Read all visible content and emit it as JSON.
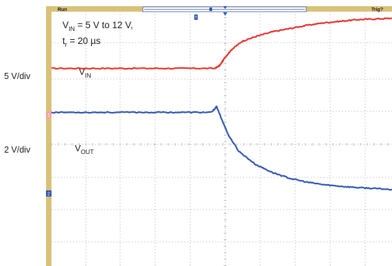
{
  "header": {
    "status": "Run",
    "trigger": "Trig?"
  },
  "annotation": {
    "line1": {
      "main": "V",
      "sub": "IN",
      "rest": " = 5 V to 12 V,"
    },
    "line2": {
      "main": "t",
      "sub": "r",
      "rest": " = 20 µs"
    }
  },
  "channels": [
    {
      "scale": "5 V/div",
      "color": "#e8312a"
    },
    {
      "scale": "2 V/div",
      "color": "#2f55b0"
    }
  ],
  "markers": {
    "trigger_position": "T",
    "ch1": "1",
    "ch2": "2"
  },
  "colors": {
    "frame": "#d8c27a",
    "grid": "#b0b0b0",
    "red": "#e8312a",
    "blue": "#2f55b0"
  },
  "chart_data": {
    "type": "line",
    "xlim": [
      0,
      10
    ],
    "ylim": [
      0,
      8
    ],
    "grid": true,
    "series": [
      {
        "name": "VIN",
        "name_main": "V",
        "name_sub": "IN",
        "color": "#e8312a",
        "x": [
          0,
          1,
          2,
          3,
          4,
          4.8,
          4.95,
          5.1,
          5.3,
          5.6,
          6,
          6.5,
          7,
          7.5,
          8,
          8.5,
          9,
          9.5,
          10
        ],
        "y": [
          6.2,
          6.2,
          6.2,
          6.2,
          6.2,
          6.2,
          6.3,
          6.55,
          6.8,
          7.05,
          7.2,
          7.35,
          7.45,
          7.55,
          7.63,
          7.68,
          7.73,
          7.75,
          7.77
        ]
      },
      {
        "name": "VOUT",
        "name_main": "V",
        "name_sub": "OUT",
        "color": "#2f55b0",
        "x": [
          0,
          1,
          2,
          3,
          4,
          4.7,
          4.85,
          5,
          5.2,
          5.5,
          6,
          6.5,
          7,
          7.5,
          8,
          8.5,
          9,
          9.5,
          10
        ],
        "y": [
          4.82,
          4.82,
          4.82,
          4.82,
          4.82,
          4.82,
          5.0,
          4.6,
          4.1,
          3.6,
          3.18,
          2.93,
          2.75,
          2.63,
          2.55,
          2.5,
          2.46,
          2.43,
          2.4
        ]
      }
    ]
  }
}
